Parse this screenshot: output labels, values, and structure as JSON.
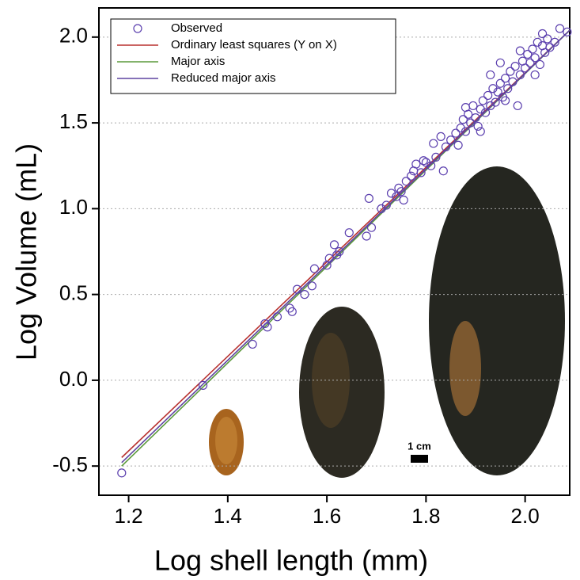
{
  "chart_data": {
    "type": "scatter",
    "xlabel": "Log shell length (mm)",
    "ylabel": "Log Volume (mL)",
    "scale_label": "1 cm",
    "xlim": [
      1.14,
      2.09
    ],
    "ylim": [
      -0.67,
      2.17
    ],
    "xticks": [
      1.2,
      1.4,
      1.6,
      1.8,
      {
        "value": 2.0,
        "label": "2.0"
      }
    ],
    "yticks": [
      {
        "value": -0.5,
        "label": "-0.5"
      },
      {
        "value": 0.0,
        "label": "0.0"
      },
      {
        "value": 0.5,
        "label": "0.5"
      },
      {
        "value": 1.0,
        "label": "1.0"
      },
      {
        "value": 1.5,
        "label": "1.5"
      },
      {
        "value": 2.0,
        "label": "2.0"
      }
    ],
    "grid": true,
    "legend": "upper left",
    "series": [
      {
        "name": "Observed",
        "color": "#5b3fae",
        "marker": "circle",
        "x": [
          1.186,
          1.35,
          1.45,
          1.475,
          1.48,
          1.5,
          1.525,
          1.53,
          1.54,
          1.555,
          1.57,
          1.575,
          1.6,
          1.605,
          1.615,
          1.62,
          1.625,
          1.645,
          1.68,
          1.685,
          1.69,
          1.71,
          1.72,
          1.73,
          1.74,
          1.745,
          1.75,
          1.755,
          1.76,
          1.77,
          1.775,
          1.78,
          1.79,
          1.795,
          1.8,
          1.81,
          1.815,
          1.82,
          1.83,
          1.835,
          1.84,
          1.85,
          1.86,
          1.865,
          1.87,
          1.875,
          1.88,
          1.885,
          1.89,
          1.895,
          1.9,
          1.905,
          1.91,
          1.915,
          1.92,
          1.925,
          1.93,
          1.935,
          1.94,
          1.945,
          1.95,
          1.955,
          1.96,
          1.965,
          1.97,
          1.975,
          1.98,
          1.985,
          1.99,
          1.995,
          2.0,
          2.005,
          2.01,
          2.015,
          2.02,
          2.025,
          2.03,
          2.035,
          2.04,
          2.045,
          2.05,
          2.06,
          2.07,
          2.085,
          1.93,
          1.96,
          1.99,
          2.02,
          1.88,
          1.95,
          2.035,
          1.91
        ],
        "values": [
          -0.54,
          -0.03,
          0.21,
          0.33,
          0.31,
          0.37,
          0.42,
          0.4,
          0.53,
          0.5,
          0.55,
          0.65,
          0.67,
          0.71,
          0.79,
          0.73,
          0.75,
          0.86,
          0.84,
          1.06,
          0.89,
          1.0,
          1.02,
          1.09,
          1.07,
          1.12,
          1.1,
          1.05,
          1.16,
          1.19,
          1.22,
          1.26,
          1.21,
          1.28,
          1.27,
          1.25,
          1.38,
          1.3,
          1.42,
          1.22,
          1.36,
          1.4,
          1.44,
          1.37,
          1.47,
          1.52,
          1.45,
          1.55,
          1.5,
          1.6,
          1.53,
          1.48,
          1.58,
          1.63,
          1.56,
          1.66,
          1.6,
          1.7,
          1.62,
          1.68,
          1.73,
          1.65,
          1.76,
          1.7,
          1.8,
          1.74,
          1.83,
          1.6,
          1.78,
          1.86,
          1.82,
          1.9,
          1.85,
          1.93,
          1.88,
          1.97,
          1.84,
          1.95,
          1.91,
          1.99,
          1.94,
          1.97,
          2.05,
          2.03,
          1.78,
          1.63,
          1.92,
          1.78,
          1.59,
          1.85,
          2.02,
          1.45
        ]
      },
      {
        "name": "Ordinary least squares (Y on X)",
        "color": "#b8312f",
        "marker": "line",
        "x": [
          1.186,
          2.09
        ],
        "values": [
          -0.45,
          2.04
        ]
      },
      {
        "name": "Major axis",
        "color": "#5c9a3c",
        "marker": "line",
        "x": [
          1.186,
          2.09
        ],
        "values": [
          -0.5,
          2.04
        ]
      },
      {
        "name": "Reduced major axis",
        "color": "#5e44a0",
        "marker": "line",
        "x": [
          1.186,
          2.09
        ],
        "values": [
          -0.48,
          2.04
        ]
      }
    ]
  }
}
